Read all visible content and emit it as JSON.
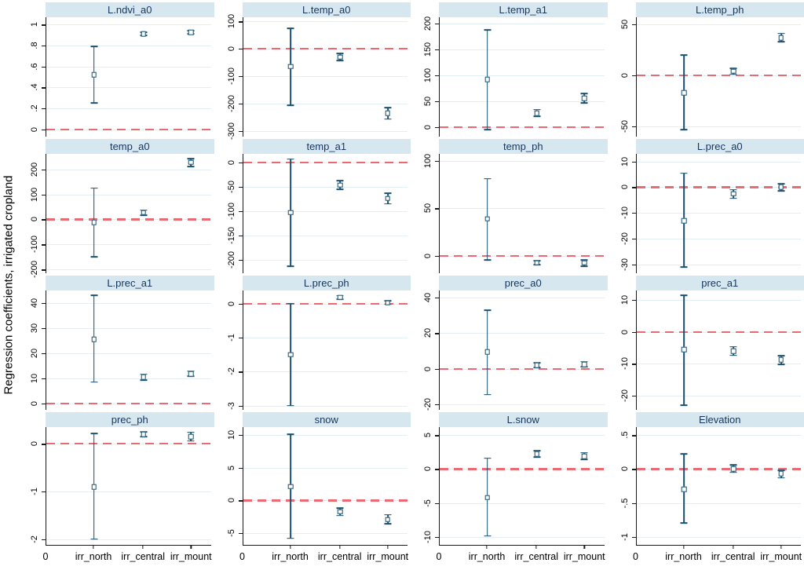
{
  "figure": {
    "ylabel": "Regression coefficients, irrigated cropland",
    "x_origin_label": "0",
    "x_categories": [
      "irr_north",
      "irr_central",
      "irr_mount"
    ],
    "colors": {
      "band_bg": "#d6e7f0",
      "band_text": "#17365c",
      "marker": "#174f6d",
      "zero_line": "#ea6a74",
      "gridline": "#e4eef5",
      "axis": "#1a1a1a"
    }
  },
  "chart_data": [
    {
      "type": "scatter",
      "title": "L.ndvi_a0",
      "ymin": -0.07,
      "ymax": 1.07,
      "ticks": [
        {
          "v": 0,
          "l": "0"
        },
        {
          "v": 0.2,
          "l": ".2"
        },
        {
          "v": 0.4,
          "l": ".4"
        },
        {
          "v": 0.6,
          "l": ".6"
        },
        {
          "v": 0.8,
          "l": ".8"
        },
        {
          "v": 1,
          "l": "1"
        }
      ],
      "points": [
        {
          "cat": "irr_north",
          "est": 0.52,
          "lo": 0.25,
          "hi": 0.79
        },
        {
          "cat": "irr_central",
          "est": 0.91,
          "lo": 0.895,
          "hi": 0.925
        },
        {
          "cat": "irr_mount",
          "est": 0.925,
          "lo": 0.91,
          "hi": 0.94
        }
      ]
    },
    {
      "type": "scatter",
      "title": "L.temp_a0",
      "ymin": -320,
      "ymax": 115,
      "ticks": [
        {
          "v": -300,
          "l": "-300"
        },
        {
          "v": -200,
          "l": "-200"
        },
        {
          "v": -100,
          "l": "-100"
        },
        {
          "v": 0,
          "l": "0"
        },
        {
          "v": 100,
          "l": "100"
        }
      ],
      "points": [
        {
          "cat": "irr_north",
          "est": -65,
          "lo": -205,
          "hi": 75
        },
        {
          "cat": "irr_central",
          "est": -30,
          "lo": -42,
          "hi": -18
        },
        {
          "cat": "irr_mount",
          "est": -235,
          "lo": -256,
          "hi": -215
        }
      ]
    },
    {
      "type": "scatter",
      "title": "L.temp_a1",
      "ymin": -18,
      "ymax": 212,
      "ticks": [
        {
          "v": 0,
          "l": "0"
        },
        {
          "v": 50,
          "l": "50"
        },
        {
          "v": 100,
          "l": "100"
        },
        {
          "v": 150,
          "l": "150"
        },
        {
          "v": 200,
          "l": "200"
        }
      ],
      "points": [
        {
          "cat": "irr_north",
          "est": 92,
          "lo": -5,
          "hi": 188
        },
        {
          "cat": "irr_central",
          "est": 27,
          "lo": 21,
          "hi": 34
        },
        {
          "cat": "irr_mount",
          "est": 56,
          "lo": 47,
          "hi": 65
        }
      ]
    },
    {
      "type": "scatter",
      "title": "L.temp_ph",
      "ymin": -60,
      "ymax": 57,
      "ticks": [
        {
          "v": -50,
          "l": "-50"
        },
        {
          "v": 0,
          "l": "0"
        },
        {
          "v": 50,
          "l": "50"
        }
      ],
      "points": [
        {
          "cat": "irr_north",
          "est": -17,
          "lo": -53,
          "hi": 20
        },
        {
          "cat": "irr_central",
          "est": 4,
          "lo": 1,
          "hi": 7
        },
        {
          "cat": "irr_mount",
          "est": 37,
          "lo": 33,
          "hi": 41
        }
      ]
    },
    {
      "type": "scatter",
      "title": "temp_a0",
      "ymin": -215,
      "ymax": 262,
      "ticks": [
        {
          "v": -200,
          "l": "-200"
        },
        {
          "v": -100,
          "l": "-100"
        },
        {
          "v": 0,
          "l": "0"
        },
        {
          "v": 100,
          "l": "100"
        },
        {
          "v": 200,
          "l": "200"
        }
      ],
      "points": [
        {
          "cat": "irr_north",
          "est": -12,
          "lo": -150,
          "hi": 125
        },
        {
          "cat": "irr_central",
          "est": 27,
          "lo": 17,
          "hi": 37
        },
        {
          "cat": "irr_mount",
          "est": 228,
          "lo": 212,
          "hi": 243
        }
      ]
    },
    {
      "type": "scatter",
      "title": "temp_a1",
      "ymin": -228,
      "ymax": 18,
      "ticks": [
        {
          "v": -200,
          "l": "-200"
        },
        {
          "v": -150,
          "l": "-150"
        },
        {
          "v": -100,
          "l": "-100"
        },
        {
          "v": -50,
          "l": "-50"
        },
        {
          "v": 0,
          "l": "0"
        }
      ],
      "points": [
        {
          "cat": "irr_north",
          "est": -103,
          "lo": -214,
          "hi": 7
        },
        {
          "cat": "irr_central",
          "est": -46,
          "lo": -55,
          "hi": -37
        },
        {
          "cat": "irr_mount",
          "est": -74,
          "lo": -85,
          "hi": -63
        }
      ]
    },
    {
      "type": "scatter",
      "title": "temp_ph",
      "ymin": -18,
      "ymax": 107,
      "ticks": [
        {
          "v": 0,
          "l": "0"
        },
        {
          "v": 50,
          "l": "50"
        },
        {
          "v": 100,
          "l": "100"
        }
      ],
      "points": [
        {
          "cat": "irr_north",
          "est": 39,
          "lo": -4,
          "hi": 81
        },
        {
          "cat": "irr_central",
          "est": -7,
          "lo": -9,
          "hi": -5
        },
        {
          "cat": "irr_mount",
          "est": -7,
          "lo": -11,
          "hi": -4
        }
      ]
    },
    {
      "type": "scatter",
      "title": "L.prec_a0",
      "ymin": -33.5,
      "ymax": 13,
      "ticks": [
        {
          "v": -30,
          "l": "-30"
        },
        {
          "v": -20,
          "l": "-20"
        },
        {
          "v": -10,
          "l": "-10"
        },
        {
          "v": 0,
          "l": "0"
        },
        {
          "v": 10,
          "l": "10"
        }
      ],
      "points": [
        {
          "cat": "irr_north",
          "est": -13,
          "lo": -31,
          "hi": 5.5
        },
        {
          "cat": "irr_central",
          "est": -2.5,
          "lo": -4.3,
          "hi": -1
        },
        {
          "cat": "irr_mount",
          "est": 0,
          "lo": -1.4,
          "hi": 1.4
        }
      ]
    },
    {
      "type": "scatter",
      "title": "L.prec_a1",
      "ymin": -2.5,
      "ymax": 45,
      "ticks": [
        {
          "v": 0,
          "l": "0"
        },
        {
          "v": 10,
          "l": "10"
        },
        {
          "v": 20,
          "l": "20"
        },
        {
          "v": 30,
          "l": "30"
        },
        {
          "v": 40,
          "l": "40"
        }
      ],
      "points": [
        {
          "cat": "irr_north",
          "est": 25.5,
          "lo": 8.5,
          "hi": 43
        },
        {
          "cat": "irr_central",
          "est": 10.5,
          "lo": 9.3,
          "hi": 11.7
        },
        {
          "cat": "irr_mount",
          "est": 11.8,
          "lo": 10.8,
          "hi": 12.9
        }
      ]
    },
    {
      "type": "scatter",
      "title": "L.prec_ph",
      "ymin": -3.12,
      "ymax": 0.38,
      "ticks": [
        {
          "v": -3,
          "l": "-3"
        },
        {
          "v": -2,
          "l": "-2"
        },
        {
          "v": -1,
          "l": "-1"
        },
        {
          "v": 0,
          "l": "0"
        }
      ],
      "points": [
        {
          "cat": "irr_north",
          "est": -1.5,
          "lo": -3.0,
          "hi": 0.0
        },
        {
          "cat": "irr_central",
          "est": 0.18,
          "lo": 0.13,
          "hi": 0.23
        },
        {
          "cat": "irr_mount",
          "est": 0.02,
          "lo": -0.03,
          "hi": 0.07
        }
      ]
    },
    {
      "type": "scatter",
      "title": "prec_a0",
      "ymin": -23,
      "ymax": 44,
      "ticks": [
        {
          "v": -20,
          "l": "-20"
        },
        {
          "v": 0,
          "l": "0"
        },
        {
          "v": 20,
          "l": "20"
        },
        {
          "v": 40,
          "l": "40"
        }
      ],
      "points": [
        {
          "cat": "irr_north",
          "est": 9.5,
          "lo": -14.5,
          "hi": 33
        },
        {
          "cat": "irr_central",
          "est": 2,
          "lo": 0.6,
          "hi": 3.4
        },
        {
          "cat": "irr_mount",
          "est": 2.5,
          "lo": 1.1,
          "hi": 4
        }
      ]
    },
    {
      "type": "scatter",
      "title": "prec_a1",
      "ymin": -24.5,
      "ymax": 13,
      "ticks": [
        {
          "v": -20,
          "l": "-20"
        },
        {
          "v": -10,
          "l": "-10"
        },
        {
          "v": 0,
          "l": "0"
        },
        {
          "v": 10,
          "l": "10"
        }
      ],
      "points": [
        {
          "cat": "irr_north",
          "est": -5.5,
          "lo": -23,
          "hi": 11.5
        },
        {
          "cat": "irr_central",
          "est": -6,
          "lo": -7.4,
          "hi": -4.7
        },
        {
          "cat": "irr_mount",
          "est": -8.8,
          "lo": -10.2,
          "hi": -7.5
        }
      ]
    },
    {
      "type": "scatter",
      "title": "prec_ph",
      "ymin": -2.12,
      "ymax": 0.35,
      "ticks": [
        {
          "v": -2,
          "l": "-2"
        },
        {
          "v": -1,
          "l": "-1"
        },
        {
          "v": 0,
          "l": "0"
        }
      ],
      "points": [
        {
          "cat": "irr_north",
          "est": -0.9,
          "lo": -2.0,
          "hi": 0.22
        },
        {
          "cat": "irr_central",
          "est": 0.2,
          "lo": 0.15,
          "hi": 0.25
        },
        {
          "cat": "irr_mount",
          "est": 0.15,
          "lo": 0.06,
          "hi": 0.24
        }
      ]
    },
    {
      "type": "scatter",
      "title": "snow",
      "ymin": -6.8,
      "ymax": 11.2,
      "ticks": [
        {
          "v": -5,
          "l": "-5"
        },
        {
          "v": 0,
          "l": "0"
        },
        {
          "v": 5,
          "l": "5"
        },
        {
          "v": 10,
          "l": "10"
        }
      ],
      "points": [
        {
          "cat": "irr_north",
          "est": 2.1,
          "lo": -5.8,
          "hi": 10.1
        },
        {
          "cat": "irr_central",
          "est": -1.7,
          "lo": -2.3,
          "hi": -1.2
        },
        {
          "cat": "irr_mount",
          "est": -2.9,
          "lo": -3.6,
          "hi": -2.2
        }
      ]
    },
    {
      "type": "scatter",
      "title": "L.snow",
      "ymin": -11.2,
      "ymax": 6.2,
      "ticks": [
        {
          "v": -10,
          "l": "-10"
        },
        {
          "v": -5,
          "l": "-5"
        },
        {
          "v": 0,
          "l": "0"
        },
        {
          "v": 5,
          "l": "5"
        }
      ],
      "points": [
        {
          "cat": "irr_north",
          "est": -4.2,
          "lo": -9.9,
          "hi": 1.6
        },
        {
          "cat": "irr_central",
          "est": 2.2,
          "lo": 1.8,
          "hi": 2.7
        },
        {
          "cat": "irr_mount",
          "est": 1.9,
          "lo": 1.4,
          "hi": 2.4
        }
      ]
    },
    {
      "type": "scatter",
      "title": "Elevation",
      "ymin": -1.12,
      "ymax": 0.62,
      "ticks": [
        {
          "v": -1,
          "l": "-1"
        },
        {
          "v": -0.5,
          "l": "-.5"
        },
        {
          "v": 0,
          "l": "0"
        },
        {
          "v": 0.5,
          "l": ".5"
        }
      ],
      "points": [
        {
          "cat": "irr_north",
          "est": -0.3,
          "lo": -0.8,
          "hi": 0.22
        },
        {
          "cat": "irr_central",
          "est": 0.005,
          "lo": -0.05,
          "hi": 0.06
        },
        {
          "cat": "irr_mount",
          "est": -0.07,
          "lo": -0.13,
          "hi": -0.02
        }
      ]
    }
  ]
}
